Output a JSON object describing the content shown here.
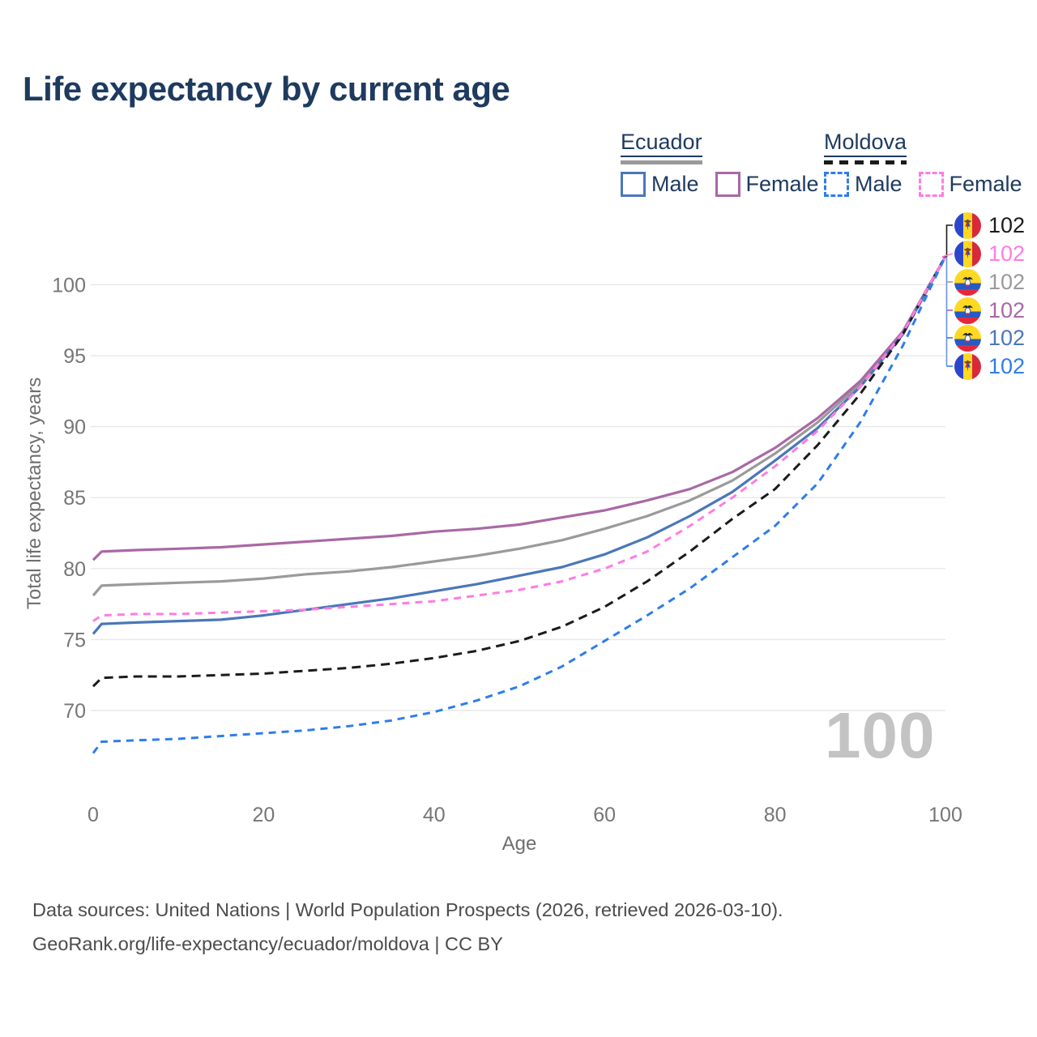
{
  "header": {
    "title": "Life expectancy by current age"
  },
  "legend": {
    "groups": [
      {
        "name": "Ecuador",
        "style": "solid",
        "bar_color": "#9a9a9a",
        "items": [
          {
            "label": "Male",
            "color": "#4a77b9"
          },
          {
            "label": "Female",
            "color": "#aa68a5"
          }
        ]
      },
      {
        "name": "Moldova",
        "style": "dashed",
        "bar_color": "#1b1b1b",
        "items": [
          {
            "label": "Male",
            "color": "#2e7ded"
          },
          {
            "label": "Female",
            "color": "#ff7ce2"
          }
        ]
      }
    ]
  },
  "chart_data": {
    "type": "line",
    "title": "Life expectancy by current age",
    "xlabel": "Age",
    "ylabel": "Total life expectancy, years",
    "x_ticks": [
      0,
      20,
      40,
      60,
      80,
      100
    ],
    "y_ticks": [
      70,
      75,
      80,
      85,
      90,
      95,
      100
    ],
    "xlim": [
      0,
      100
    ],
    "ylim": [
      66,
      103.5
    ],
    "grid": "horizontal",
    "legend_position": "top-right",
    "watermark": "100",
    "x": [
      0,
      1,
      5,
      10,
      15,
      20,
      25,
      30,
      35,
      40,
      45,
      50,
      55,
      60,
      65,
      70,
      75,
      80,
      85,
      90,
      95,
      100
    ],
    "series": [
      {
        "name": "Ecuador (both sexes)",
        "country": "Ecuador",
        "color": "#9a9a9a",
        "dash": null,
        "values": [
          78.1,
          78.8,
          78.9,
          79.0,
          79.1,
          79.3,
          79.6,
          79.8,
          80.1,
          80.5,
          80.9,
          81.4,
          82.0,
          82.8,
          83.7,
          84.8,
          86.2,
          88.1,
          90.3,
          93.0,
          96.6,
          102
        ]
      },
      {
        "name": "Ecuador Female",
        "country": "Ecuador",
        "color": "#aa68a5",
        "dash": null,
        "values": [
          80.6,
          81.2,
          81.3,
          81.4,
          81.5,
          81.7,
          81.9,
          82.1,
          82.3,
          82.6,
          82.8,
          83.1,
          83.6,
          84.1,
          84.8,
          85.6,
          86.8,
          88.5,
          90.6,
          93.2,
          96.7,
          102
        ]
      },
      {
        "name": "Ecuador Male",
        "country": "Ecuador",
        "color": "#4a77b9",
        "dash": null,
        "values": [
          75.4,
          76.1,
          76.2,
          76.3,
          76.4,
          76.7,
          77.1,
          77.5,
          77.9,
          78.4,
          78.9,
          79.5,
          80.1,
          81.0,
          82.2,
          83.7,
          85.4,
          87.6,
          89.9,
          92.8,
          96.5,
          102
        ]
      },
      {
        "name": "Moldova (both sexes)",
        "country": "Moldova",
        "color": "#1b1b1b",
        "dash": "11 7",
        "values": [
          71.7,
          72.3,
          72.4,
          72.4,
          72.5,
          72.6,
          72.8,
          73.0,
          73.3,
          73.7,
          74.2,
          74.9,
          75.9,
          77.3,
          79.1,
          81.2,
          83.5,
          85.6,
          88.7,
          92.3,
          96.5,
          102
        ]
      },
      {
        "name": "Moldova Male",
        "country": "Moldova",
        "color": "#2e7ded",
        "dash": "9 7",
        "values": [
          67.0,
          67.8,
          67.9,
          68.0,
          68.2,
          68.4,
          68.6,
          68.9,
          69.3,
          69.9,
          70.7,
          71.7,
          73.1,
          74.9,
          76.7,
          78.6,
          80.8,
          83.0,
          86.0,
          90.3,
          95.7,
          102
        ]
      },
      {
        "name": "Moldova Female",
        "country": "Moldova",
        "color": "#ff7ce2",
        "dash": "9 7",
        "values": [
          76.3,
          76.7,
          76.8,
          76.8,
          76.9,
          77.0,
          77.1,
          77.3,
          77.5,
          77.7,
          78.1,
          78.5,
          79.1,
          80.0,
          81.2,
          83.0,
          85.0,
          87.2,
          89.7,
          92.8,
          96.6,
          102
        ]
      }
    ],
    "end_labels": [
      {
        "flag": "moldova",
        "value": "102",
        "color": "#1b1b1b"
      },
      {
        "flag": "moldova",
        "value": "102",
        "color": "#ff7ce2"
      },
      {
        "flag": "ecuador",
        "value": "102",
        "color": "#9a9a9a"
      },
      {
        "flag": "ecuador",
        "value": "102",
        "color": "#aa68a5"
      },
      {
        "flag": "ecuador",
        "value": "102",
        "color": "#4a77b9"
      },
      {
        "flag": "moldova",
        "value": "102",
        "color": "#2e7ded"
      }
    ],
    "colors": {
      "grid": "#e8e8e8",
      "tick_label": "#767676",
      "axis_title": "#6e6e6e",
      "watermark": "#c3c3c3",
      "leader_trunk": "#6a93d8"
    }
  },
  "footer": {
    "line1": "Data sources: United Nations | World Population Prospects (2026, retrieved 2026-03-10).",
    "line2": "GeoRank.org/life-expectancy/ecuador/moldova | CC BY"
  }
}
